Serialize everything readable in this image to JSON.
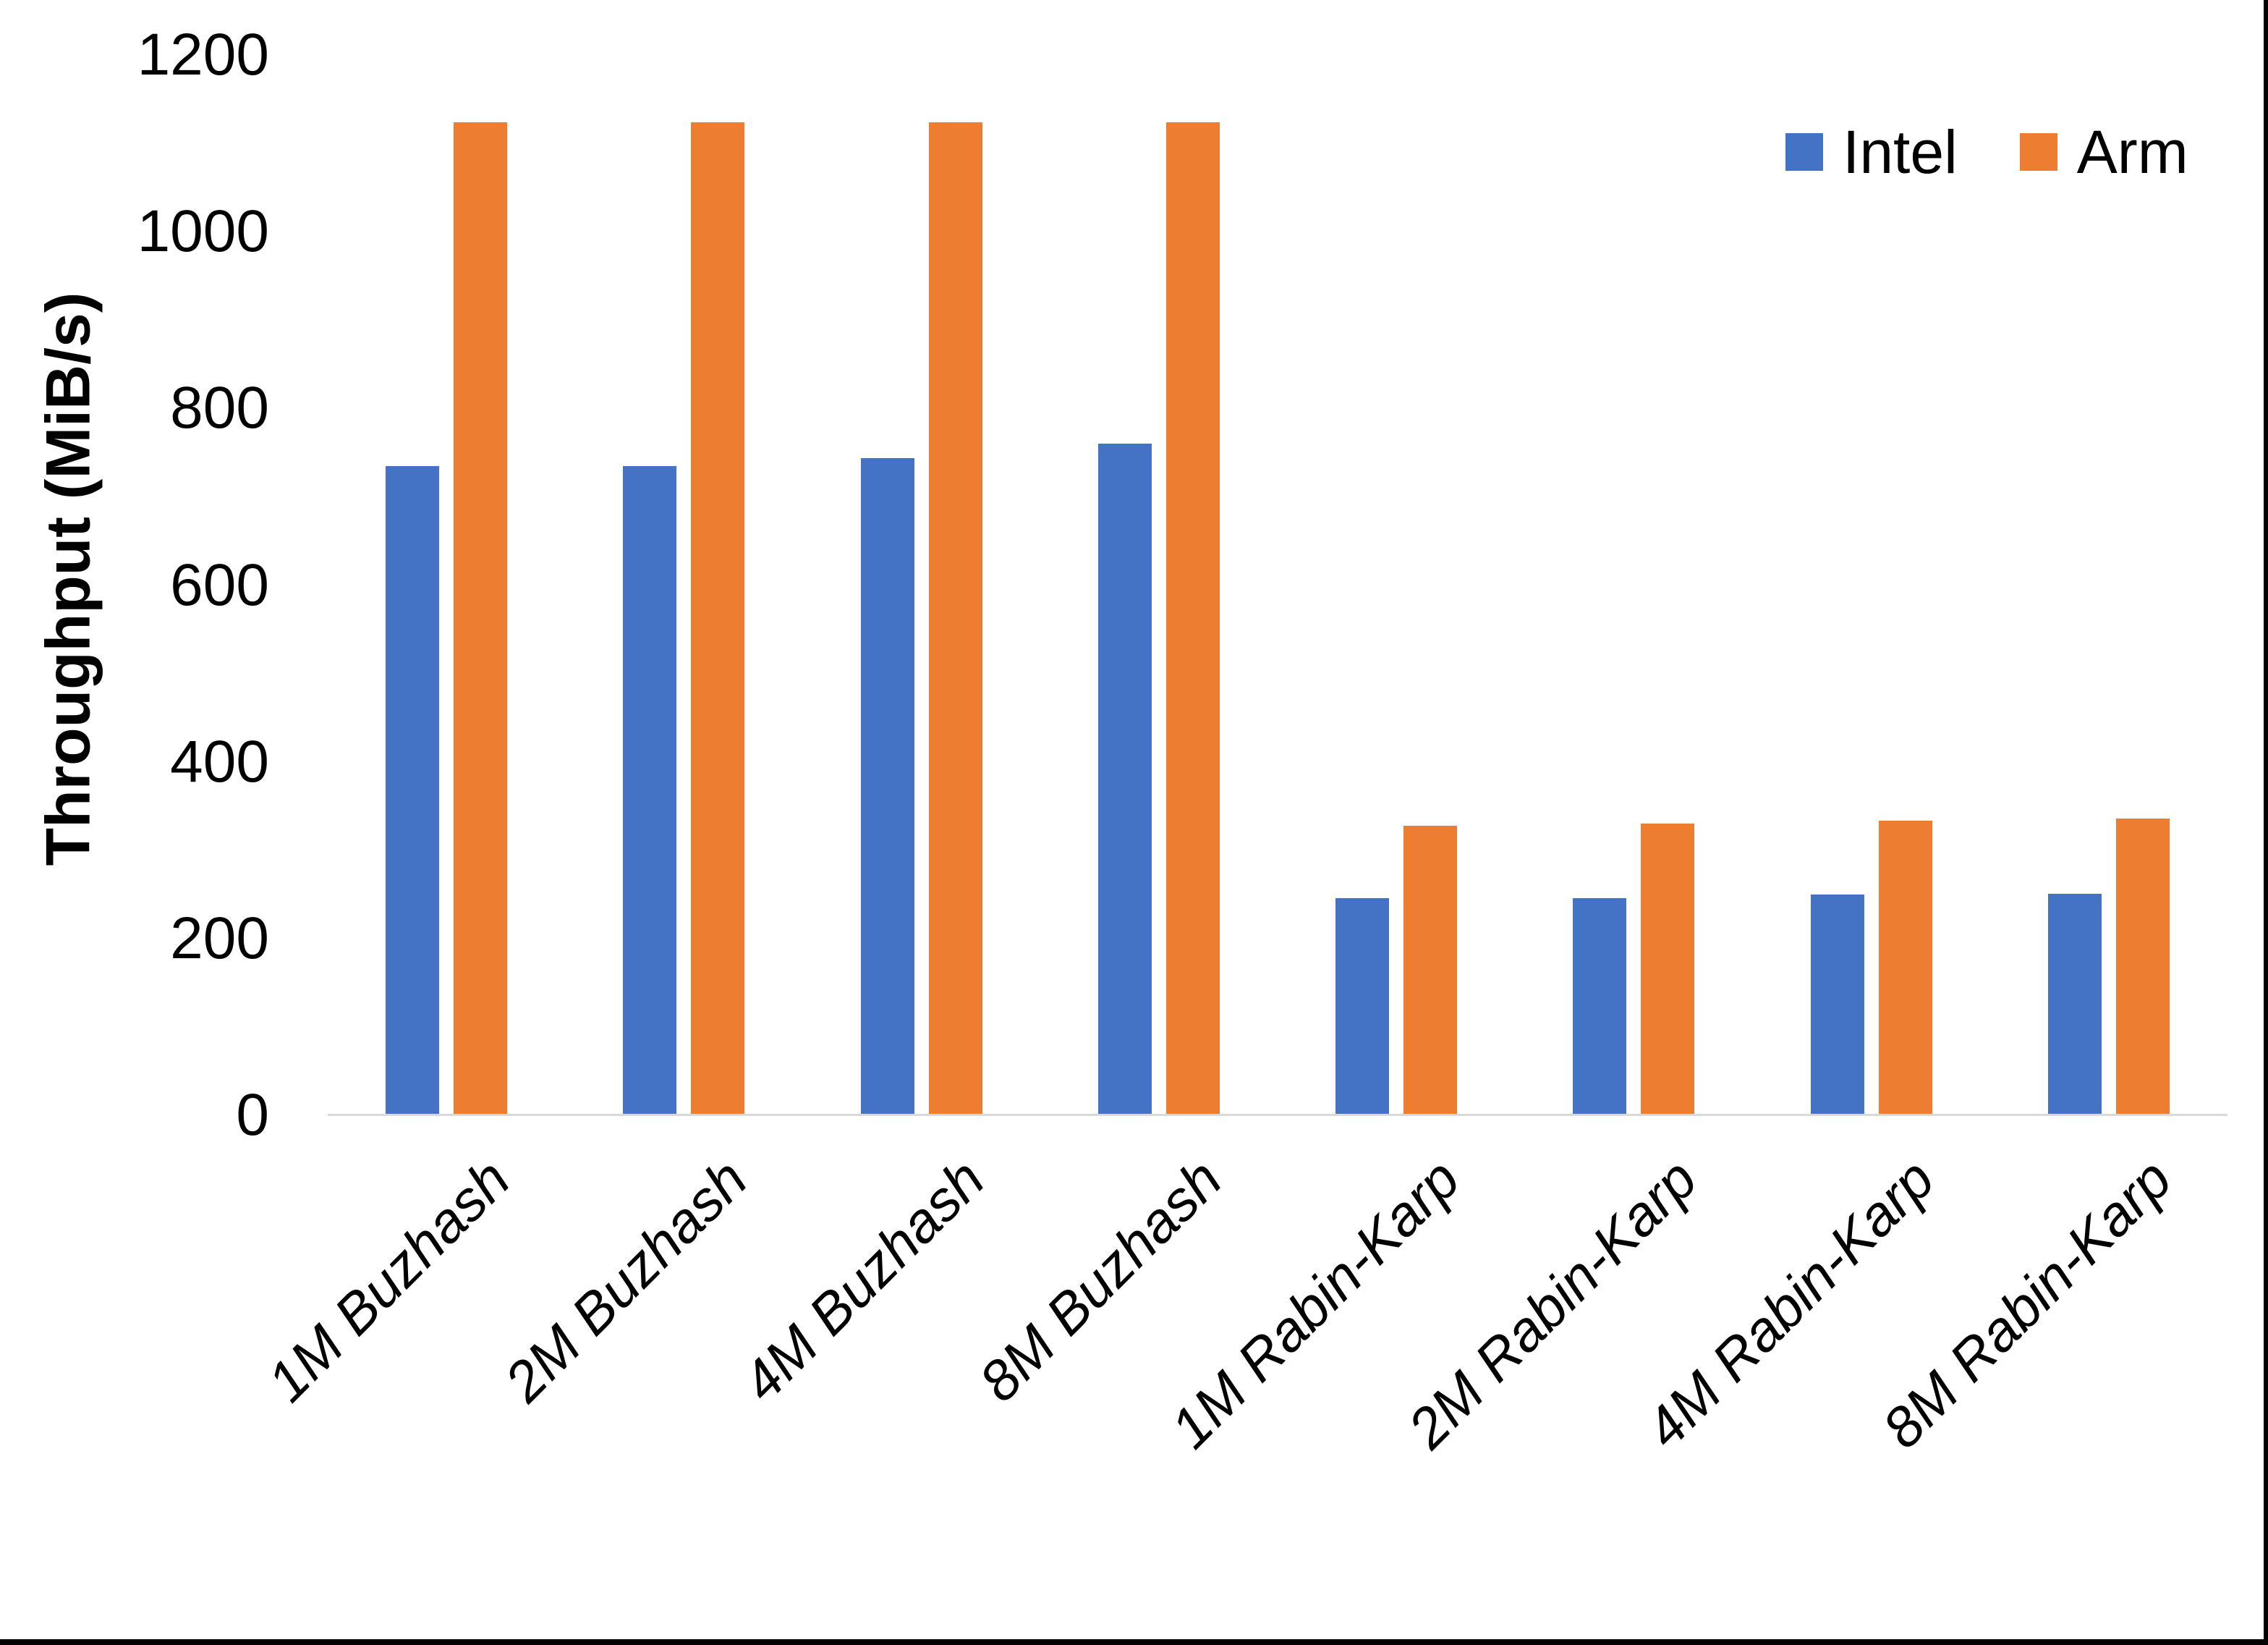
{
  "chart_data": {
    "type": "bar",
    "title": "",
    "xlabel": "",
    "ylabel": "Throughput (MiB/s)",
    "ylim": [
      0,
      1200
    ],
    "yticks": [
      0,
      200,
      400,
      600,
      800,
      1000,
      1200
    ],
    "grid": false,
    "legend_position": "top-right",
    "categories": [
      "1M Buzhash",
      "2M Buzhash",
      "4M Buzhash",
      "8M Buzhash",
      "1M Rabin-Karp",
      "2M Rabin-Karp",
      "4M Rabin-Karp",
      "8M Rabin-Karp"
    ],
    "series": [
      {
        "name": "Intel",
        "color": "#4472C4",
        "values": [
          735,
          735,
          744,
          760,
          246,
          246,
          250,
          251
        ]
      },
      {
        "name": "Arm",
        "color": "#ED7D31",
        "values": [
          1124,
          1124,
          1124,
          1124,
          328,
          330,
          333,
          336
        ]
      }
    ]
  },
  "colors": {
    "axis_line": "#D9D9D9",
    "text": "#000000",
    "background": "#FFFFFF",
    "edge_border": "#000000"
  }
}
